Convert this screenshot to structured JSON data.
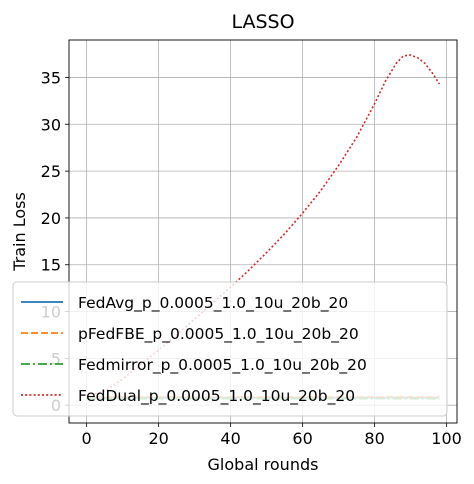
{
  "chart_data": {
    "type": "line",
    "title": "LASSO",
    "xlabel": "Global rounds",
    "ylabel": "Train Loss",
    "xlim": [
      -4.9,
      102.9
    ],
    "ylim": [
      -1.9,
      39.0
    ],
    "xticks": [
      "0",
      "20",
      "40",
      "60",
      "80",
      "100"
    ],
    "yticks": [
      "0",
      "5",
      "10",
      "15",
      "20",
      "25",
      "30",
      "35"
    ],
    "grid": true,
    "legend_position": "lower-left",
    "series": [
      {
        "name": "FedAvg_p_0.0005_1.0_10u_20b_20",
        "color": "#1f77b4",
        "linestyle": "solid",
        "x": [
          0,
          10,
          20,
          30,
          40,
          50,
          60,
          70,
          80,
          90,
          98
        ],
        "y": [
          0.8,
          0.8,
          0.8,
          0.8,
          0.8,
          0.8,
          0.8,
          0.8,
          0.8,
          0.8,
          0.8
        ]
      },
      {
        "name": "pFedFBE_p_0.0005_1.0_10u_20b_20",
        "color": "#ff7f0e",
        "linestyle": "dashed",
        "x": [
          0,
          10,
          20,
          30,
          40,
          50,
          60,
          70,
          80,
          90,
          98
        ],
        "y": [
          0.9,
          0.9,
          0.9,
          0.9,
          0.9,
          0.9,
          0.9,
          0.9,
          0.9,
          0.9,
          0.9
        ]
      },
      {
        "name": "Fedmirror_p_0.0005_1.0_10u_20b_20",
        "color": "#2ca02c",
        "linestyle": "dashdot",
        "x": [
          0,
          10,
          20,
          30,
          40,
          50,
          60,
          70,
          80,
          90,
          98
        ],
        "y": [
          0.7,
          0.7,
          0.7,
          0.7,
          0.7,
          0.7,
          0.7,
          0.7,
          0.7,
          0.7,
          0.7
        ]
      },
      {
        "name": "FedDual_p_0.0005_1.0_10u_20b_20",
        "color": "#d62728",
        "linestyle": "dotted",
        "x": [
          0,
          5,
          10,
          15,
          20,
          25,
          30,
          35,
          40,
          45,
          50,
          55,
          60,
          65,
          70,
          75,
          80,
          83,
          86,
          88,
          90,
          92,
          94,
          96,
          98
        ],
        "y": [
          1.0,
          1.5,
          2.8,
          4.3,
          5.9,
          7.5,
          9.2,
          10.9,
          12.6,
          14.4,
          16.3,
          18.3,
          20.5,
          22.9,
          25.6,
          28.6,
          32.2,
          34.6,
          36.5,
          37.3,
          37.4,
          37.1,
          36.5,
          35.5,
          34.3
        ]
      }
    ]
  }
}
